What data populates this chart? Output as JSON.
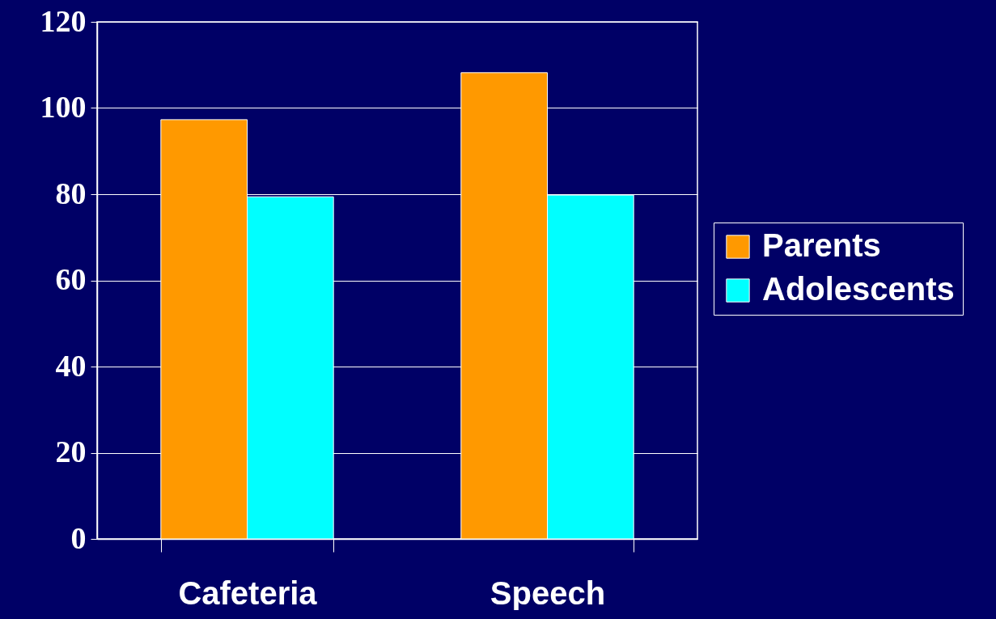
{
  "chart_data": {
    "type": "bar",
    "categories": [
      "Cafeteria",
      "Speech"
    ],
    "series": [
      {
        "name": "Parents",
        "color": "#ff9900",
        "values": [
          97.3,
          108.2
        ]
      },
      {
        "name": "Adolescents",
        "color": "#00ffff",
        "values": [
          79.4,
          79.8
        ]
      }
    ],
    "ylim": [
      0,
      120
    ],
    "yticks": [
      0,
      20,
      40,
      60,
      80,
      100,
      120
    ],
    "grid": "y",
    "legend": "right"
  }
}
